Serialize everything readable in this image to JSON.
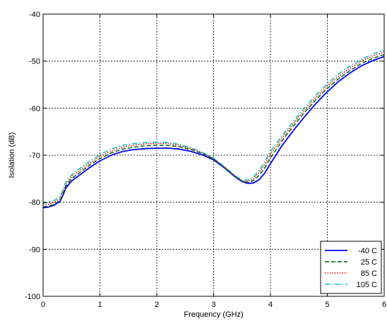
{
  "chart_data": {
    "type": "line",
    "title": "",
    "xlabel": "Frequency (GHz)",
    "ylabel": "Isolation (dB)",
    "xlim": [
      0,
      6
    ],
    "ylim": [
      -100,
      -40
    ],
    "xticks": [
      0,
      1,
      2,
      3,
      4,
      5,
      6
    ],
    "yticks": [
      -100,
      -90,
      -80,
      -70,
      -60,
      -50,
      -40
    ],
    "xtick_labels": [
      "0",
      "1",
      "2",
      "3",
      "4",
      "5",
      "6"
    ],
    "ytick_labels": [
      "-100",
      "-90",
      "-80",
      "-70",
      "-60",
      "-50",
      "-40"
    ],
    "grid": true,
    "legend_position": "bottom-right",
    "x": [
      0,
      0.1,
      0.2,
      0.3,
      0.35,
      0.4,
      0.5,
      0.6,
      0.8,
      1.0,
      1.2,
      1.4,
      1.6,
      1.8,
      2.0,
      2.2,
      2.4,
      2.6,
      2.8,
      3.0,
      3.2,
      3.4,
      3.5,
      3.6,
      3.7,
      3.8,
      3.9,
      4.0,
      4.2,
      4.4,
      4.6,
      4.8,
      5.0,
      5.2,
      5.4,
      5.6,
      5.8,
      6.0
    ],
    "series": [
      {
        "name": "-40 C",
        "color": "#0000ff",
        "style": "solid",
        "values": [
          -81.2,
          -81.0,
          -80.6,
          -79.8,
          -78.5,
          -77.0,
          -75.5,
          -74.6,
          -72.8,
          -71.2,
          -70.0,
          -69.2,
          -68.8,
          -68.6,
          -68.5,
          -68.5,
          -68.7,
          -69.2,
          -69.9,
          -71.0,
          -72.8,
          -74.8,
          -75.6,
          -76.0,
          -75.9,
          -75.2,
          -73.8,
          -71.8,
          -68.0,
          -64.8,
          -61.8,
          -59.0,
          -56.5,
          -54.3,
          -52.5,
          -51.0,
          -49.9,
          -49.0
        ]
      },
      {
        "name": "25 C",
        "color": "#006400",
        "style": "dashed",
        "values": [
          -81.0,
          -80.8,
          -80.4,
          -79.6,
          -78.2,
          -76.6,
          -75.0,
          -74.1,
          -72.3,
          -70.7,
          -69.5,
          -68.7,
          -68.3,
          -68.0,
          -67.9,
          -67.9,
          -68.2,
          -68.8,
          -69.6,
          -70.8,
          -72.7,
          -74.7,
          -75.5,
          -75.8,
          -75.4,
          -74.3,
          -72.7,
          -70.6,
          -67.0,
          -63.8,
          -60.9,
          -58.2,
          -55.8,
          -53.7,
          -52.0,
          -50.5,
          -49.4,
          -48.6
        ]
      },
      {
        "name": "85 C",
        "color": "#ff0000",
        "style": "dotted",
        "values": [
          -80.6,
          -80.4,
          -80.0,
          -79.2,
          -77.7,
          -76.1,
          -74.6,
          -73.6,
          -71.9,
          -70.3,
          -69.1,
          -68.3,
          -67.8,
          -67.6,
          -67.5,
          -67.5,
          -67.9,
          -68.6,
          -69.5,
          -70.7,
          -72.6,
          -74.6,
          -75.4,
          -75.6,
          -75.0,
          -73.7,
          -72.0,
          -69.8,
          -66.4,
          -63.3,
          -60.4,
          -57.7,
          -55.3,
          -53.2,
          -51.5,
          -50.0,
          -48.9,
          -48.1
        ]
      },
      {
        "name": "105 C",
        "color": "#00bfbf",
        "style": "dashdot",
        "values": [
          -80.2,
          -80.0,
          -79.6,
          -78.8,
          -77.3,
          -75.7,
          -74.2,
          -73.2,
          -71.5,
          -69.9,
          -68.7,
          -67.9,
          -67.5,
          -67.3,
          -67.2,
          -67.3,
          -67.7,
          -68.4,
          -69.4,
          -70.6,
          -72.5,
          -74.5,
          -75.3,
          -75.3,
          -74.6,
          -73.2,
          -71.4,
          -69.2,
          -65.9,
          -62.8,
          -59.9,
          -57.2,
          -54.8,
          -52.7,
          -51.0,
          -49.6,
          -48.5,
          -47.7
        ]
      }
    ]
  }
}
